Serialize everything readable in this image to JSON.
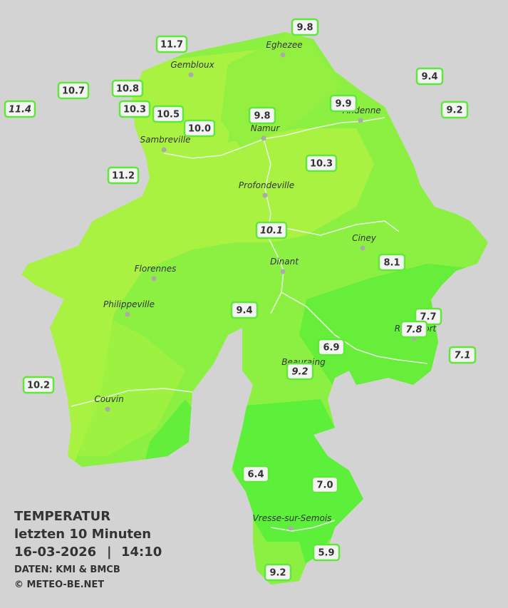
{
  "legend": {
    "title": "TEMPERATUR",
    "period": "letzten 10 Minuten",
    "date": "16-03-2026",
    "separator": "|",
    "time": "14:10",
    "source": "DATEN: KMI & BMCB",
    "copyright": "© METEO-BE.NET"
  },
  "cities": [
    "Eghezee",
    "Gembloux",
    "Andenne",
    "Namur",
    "Sambreville",
    "Profondeville",
    "Ciney",
    "Dinant",
    "Florennes",
    "Philippeville",
    "Rochefort",
    "Beauraing",
    "Couvin",
    "Vresse-sur-Semois"
  ],
  "stations": [
    "9.8",
    "11.7",
    "9.4",
    "10.7",
    "10.8",
    "11.4",
    "10.3",
    "10.5",
    "9.9",
    "9.2",
    "9.8",
    "10.0",
    "10.3",
    "11.2",
    "10.1",
    "8.1",
    "9.4",
    "7.7",
    "7.8",
    "7.1",
    "6.9",
    "9.2",
    "10.2",
    "6.4",
    "7.0",
    "5.9",
    "9.2"
  ]
}
